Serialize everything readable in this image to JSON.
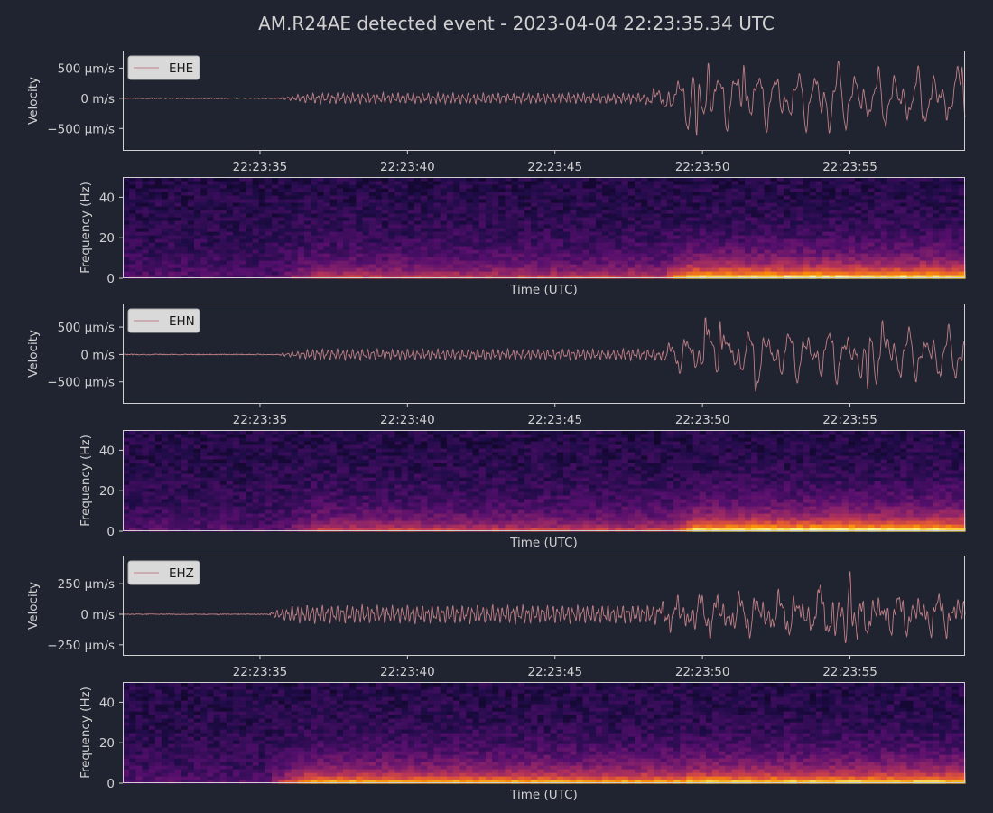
{
  "figure": {
    "title": "AM.R24AE detected event - 2023-04-04 22:23:35.34 UTC",
    "background": "#202430",
    "axes_face": "#202430",
    "text_color": "#d0d0d0",
    "trace_color": "#c07f86",
    "spine_color": "#d0d0d0"
  },
  "chart_data": [
    {
      "type": "line",
      "channel": "EHE",
      "legend": "EHE",
      "legend_placement": "top-left",
      "ylabel": "Velocity",
      "y_ticks": [
        {
          "value": 500,
          "label": "500 μm/s"
        },
        {
          "value": 0,
          "label": "0 m/s"
        },
        {
          "value": -500,
          "label": "−500 μm/s"
        }
      ],
      "ylim": [
        -870,
        790
      ],
      "x_ticks": [
        "22:23:35",
        "22:23:40",
        "22:23:45",
        "22:23:50",
        "22:23:55"
      ],
      "x_tick_seconds": [
        35,
        40,
        45,
        50,
        55
      ],
      "xlim_seconds": [
        30.35,
        58.9
      ],
      "signal": {
        "onset_s": 35.34,
        "pre_noise": 8,
        "p_wave": [
          {
            "from_s": 35.5,
            "to_s": 48.0,
            "amplitude": 100
          }
        ],
        "s_wave": {
          "start_s": 48.0,
          "amplitude": 430,
          "peaks": [
            {
              "t": 49.8,
              "v": -720
            },
            {
              "t": 50.2,
              "v": 650
            },
            {
              "t": 51.4,
              "v": 640
            },
            {
              "t": 54.3,
              "v": -620
            },
            {
              "t": 54.6,
              "v": 640
            },
            {
              "t": 58.8,
              "v": 620
            }
          ]
        }
      }
    },
    {
      "type": "heatmap",
      "channel": "EHE",
      "ylabel": "Frequency (Hz)",
      "xlabel": "Time (UTC)",
      "y_ticks": [
        0,
        20,
        40
      ],
      "ylim": [
        0,
        50
      ],
      "xlim_seconds": [
        30.35,
        58.9
      ],
      "colormap": "inferno",
      "energy": {
        "onset_s": 35.34,
        "p_level": 0.45,
        "s_start_s": 48.0,
        "s_level": 1.0
      }
    },
    {
      "type": "line",
      "channel": "EHN",
      "legend": "EHN",
      "legend_placement": "top-left",
      "ylabel": "Velocity",
      "y_ticks": [
        {
          "value": 500,
          "label": "500 μm/s"
        },
        {
          "value": 0,
          "label": "0 m/s"
        },
        {
          "value": -500,
          "label": "−500 μm/s"
        }
      ],
      "ylim": [
        -900,
        930
      ],
      "x_ticks": [
        "22:23:35",
        "22:23:40",
        "22:23:45",
        "22:23:50",
        "22:23:55"
      ],
      "x_tick_seconds": [
        35,
        40,
        45,
        50,
        55
      ],
      "xlim_seconds": [
        30.35,
        58.9
      ],
      "signal": {
        "onset_s": 35.34,
        "pre_noise": 8,
        "p_wave": [
          {
            "from_s": 35.5,
            "to_s": 48.3,
            "amplitude": 110
          }
        ],
        "s_wave": {
          "start_s": 48.3,
          "amplitude": 430,
          "peaks": [
            {
              "t": 50.1,
              "v": 780
            },
            {
              "t": 50.6,
              "v": 720
            },
            {
              "t": 51.8,
              "v": -720
            },
            {
              "t": 55.6,
              "v": -740
            },
            {
              "t": 56.1,
              "v": 700
            }
          ]
        }
      }
    },
    {
      "type": "heatmap",
      "channel": "EHN",
      "ylabel": "Frequency (Hz)",
      "xlabel": "Time (UTC)",
      "y_ticks": [
        0,
        20,
        40
      ],
      "ylim": [
        0,
        50
      ],
      "xlim_seconds": [
        30.35,
        58.9
      ],
      "colormap": "inferno",
      "energy": {
        "onset_s": 35.34,
        "p_level": 0.45,
        "s_start_s": 48.3,
        "s_level": 1.0
      }
    },
    {
      "type": "line",
      "channel": "EHZ",
      "legend": "EHZ",
      "legend_placement": "top-left",
      "ylabel": "Velocity",
      "y_ticks": [
        {
          "value": 250,
          "label": "250 μm/s"
        },
        {
          "value": 0,
          "label": "0 m/s"
        },
        {
          "value": -250,
          "label": "−250 μm/s"
        }
      ],
      "ylim": [
        -340,
        480
      ],
      "x_ticks": [
        "22:23:35",
        "22:23:40",
        "22:23:45",
        "22:23:50",
        "22:23:55"
      ],
      "x_tick_seconds": [
        35,
        40,
        45,
        50,
        55
      ],
      "xlim_seconds": [
        30.35,
        58.9
      ],
      "signal": {
        "onset_s": 35.34,
        "pre_noise": 3,
        "p_wave": [
          {
            "from_s": 35.0,
            "to_s": 48.0,
            "amplitude": 85
          }
        ],
        "s_wave": {
          "start_s": 48.0,
          "amplitude": 140,
          "peaks": [
            {
              "t": 54.0,
              "v": 260
            },
            {
              "t": 54.5,
              "v": -200
            },
            {
              "t": 54.85,
              "v": -260
            },
            {
              "t": 55.0,
              "v": 410
            },
            {
              "t": 55.25,
              "v": -250
            }
          ]
        }
      }
    },
    {
      "type": "heatmap",
      "channel": "EHZ",
      "ylabel": "Frequency (Hz)",
      "xlabel": "Time (UTC)",
      "y_ticks": [
        0,
        20,
        40
      ],
      "ylim": [
        0,
        50
      ],
      "xlim_seconds": [
        30.35,
        58.9
      ],
      "colormap": "inferno",
      "energy": {
        "onset_s": 35.0,
        "p_level": 0.8,
        "s_start_s": 48.0,
        "s_level": 0.9
      }
    }
  ]
}
